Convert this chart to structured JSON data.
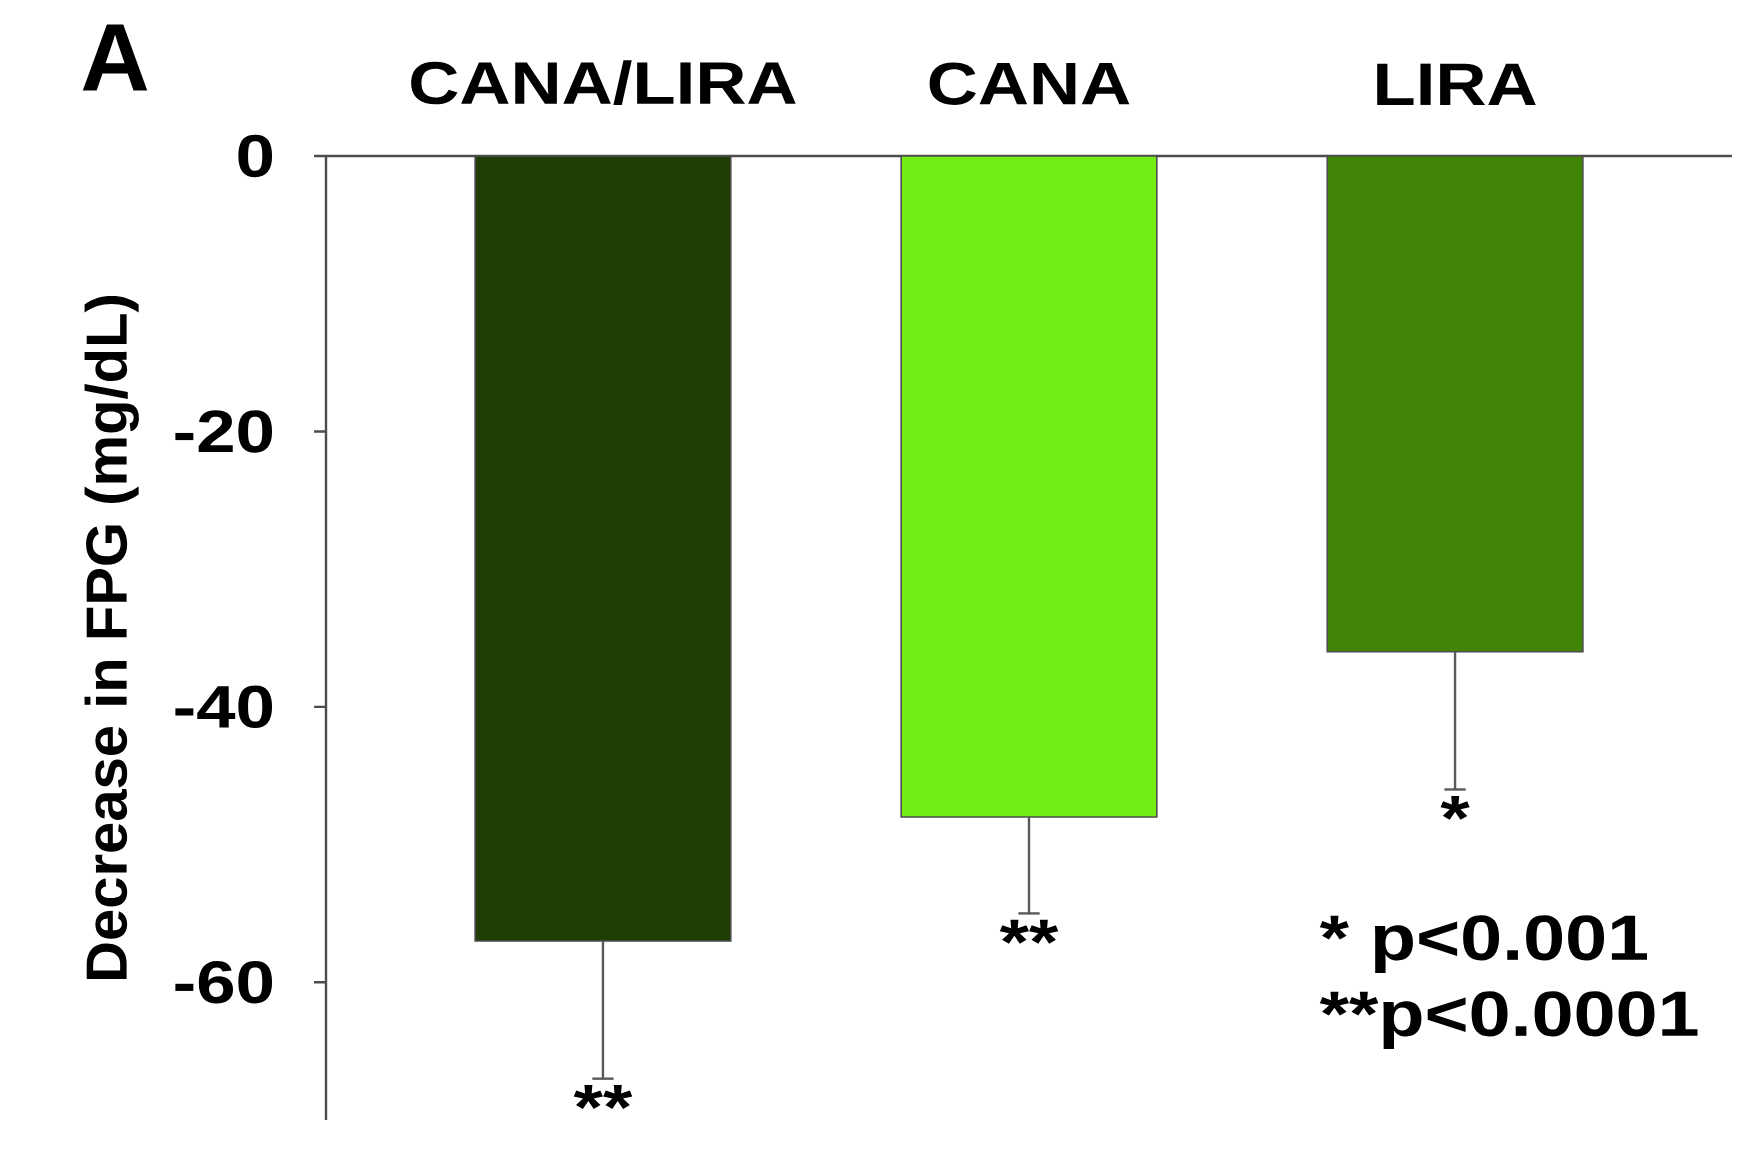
{
  "chart_data": {
    "type": "bar",
    "title": "A",
    "ylabel": "Decrease in FPG (mg/dL)",
    "categories": [
      "CANA/LIRA",
      "CANA",
      "LIRA"
    ],
    "values": [
      -57,
      -48,
      -36
    ],
    "colors": [
      "#1f3d05",
      "#72ee14",
      "#408506"
    ],
    "errors": [
      [
        -67,
        -57
      ],
      [
        -55,
        -48
      ],
      [
        -46,
        -36
      ]
    ],
    "ylim": [
      -70,
      0
    ],
    "yticks": [
      0,
      -20,
      -40,
      -60
    ],
    "annotations": [
      {
        "text": "**",
        "x": "CANA/LIRA",
        "y": -67
      },
      {
        "text": "**",
        "x": "CANA",
        "y": -55
      },
      {
        "text": "*",
        "x": "LIRA",
        "y": -46
      },
      "* p<0.001",
      "**p<0.0001"
    ]
  }
}
